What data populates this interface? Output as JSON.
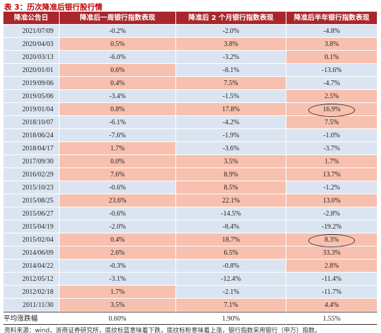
{
  "title": "表 3：历次降准后银行股行情",
  "table": {
    "header": [
      "降准公告日",
      "降准后一周银行指数表现",
      "降准后 2 个月银行指数表现",
      "降准后半年银行指数表现"
    ],
    "rows": [
      [
        "2021/07/09",
        "-0.2%",
        "-2.0%",
        "-4.8%"
      ],
      [
        "2020/04/03",
        "0.5%",
        "3.8%",
        "3.8%"
      ],
      [
        "2020/03/13",
        "-6.0%",
        "-3.2%",
        "0.1%"
      ],
      [
        "2020/01/01",
        "0.6%",
        "-8.1%",
        "-13.6%"
      ],
      [
        "2019/09/06",
        "0.4%",
        "7.5%",
        "-4.7%"
      ],
      [
        "2019/05/06",
        "-3.4%",
        "-1.5%",
        "2.5%"
      ],
      [
        "2019/01/04",
        "0.8%",
        "17.8%",
        "16.9%"
      ],
      [
        "2018/10/07",
        "-6.1%",
        "-4.2%",
        "7.5%"
      ],
      [
        "2018/06/24",
        "-7.6%",
        "-1.9%",
        "-1.0%"
      ],
      [
        "2018/04/17",
        "1.7%",
        "-3.6%",
        "-3.7%"
      ],
      [
        "2017/09/30",
        "0.0%",
        "3.5%",
        "1.7%"
      ],
      [
        "2016/02/29",
        "7.6%",
        "8.9%",
        "13.7%"
      ],
      [
        "2015/10/23",
        "-0.6%",
        "8.5%",
        "-1.2%"
      ],
      [
        "2015/08/25",
        "23.6%",
        "22.1%",
        "13.0%"
      ],
      [
        "2015/06/27",
        "-0.6%",
        "-14.5%",
        "-2.8%"
      ],
      [
        "2015/04/19",
        "-2.0%",
        "-8.4%",
        "-19.2%"
      ],
      [
        "2015/02/04",
        "0.4%",
        "18.7%",
        "8.3%"
      ],
      [
        "2014/06/09",
        "2.6%",
        "6.5%",
        "33.3%"
      ],
      [
        "2014/04/22",
        "-0.3%",
        "-0.8%",
        "2.8%"
      ],
      [
        "2012/05/12",
        "-3.1%",
        "-12.4%",
        "-11.4%"
      ],
      [
        "2012/02/18",
        "1.7%",
        "-2.1%",
        "-11.7%"
      ],
      [
        "2011/11/30",
        "3.5%",
        "7.1%",
        "4.4%"
      ]
    ],
    "average": [
      "平均涨跌幅",
      "0.60%",
      "1.90%",
      "1.55%"
    ],
    "positive_color": "#f8c0ae",
    "negative_color": "#dbe5f1"
  },
  "footer": "资料来源：wind，浙商证券研究所，底纹标蓝意味着下跌，底纹标粉意味着上涨，银行指数采用银行（申万）指数。"
}
